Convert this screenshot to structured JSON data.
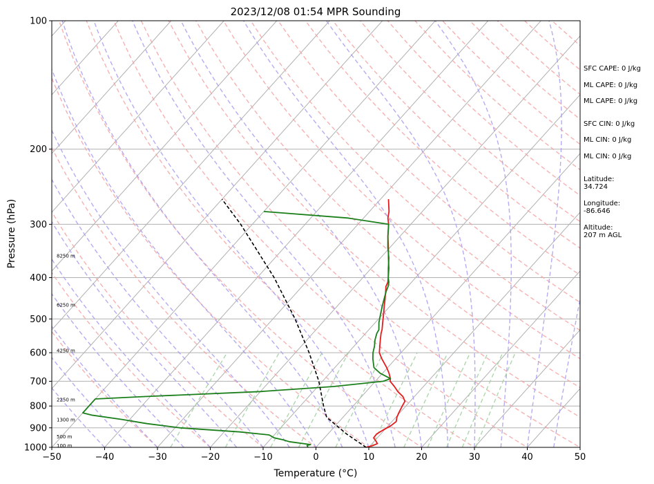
{
  "chart_data": {
    "type": "line",
    "diagram": "skew-t log-p",
    "title": "2023/12/08 01:54 MPR Sounding",
    "xlabel": "Temperature (°C)",
    "ylabel": "Pressure (hPa)",
    "xlim": [
      -50,
      50
    ],
    "ylim": [
      1000,
      100
    ],
    "y_scale": "log",
    "x_ticks": [
      "−50",
      "−40",
      "−30",
      "−20",
      "−10",
      "0",
      "10",
      "20",
      "30",
      "40",
      "50"
    ],
    "y_ticks": [
      "100",
      "200",
      "300",
      "400",
      "500",
      "600",
      "700",
      "800",
      "900",
      "1000"
    ],
    "grid": true,
    "series": [
      {
        "role": "temperature",
        "color": "#e41a1c",
        "points": [
          [
            1000,
            9.5
          ],
          [
            990,
            10.5
          ],
          [
            980,
            11
          ],
          [
            965,
            10.2
          ],
          [
            950,
            9.3
          ],
          [
            930,
            9.2
          ],
          [
            910,
            9.8
          ],
          [
            890,
            10.5
          ],
          [
            870,
            10.8
          ],
          [
            850,
            10.2
          ],
          [
            830,
            9.8
          ],
          [
            800,
            9.3
          ],
          [
            780,
            9
          ],
          [
            760,
            7.8
          ],
          [
            740,
            6
          ],
          [
            720,
            4.5
          ],
          [
            700,
            2.8
          ],
          [
            690,
            2.4
          ],
          [
            670,
            1.2
          ],
          [
            650,
            -0.2
          ],
          [
            620,
            -2.6
          ],
          [
            600,
            -4.1
          ],
          [
            580,
            -5.1
          ],
          [
            560,
            -6.1
          ],
          [
            540,
            -7.1
          ],
          [
            530,
            -7.5
          ],
          [
            510,
            -8.6
          ],
          [
            490,
            -9.7
          ],
          [
            470,
            -10.9
          ],
          [
            450,
            -12.1
          ],
          [
            430,
            -13.4
          ],
          [
            420,
            -14.1
          ],
          [
            410,
            -14.5
          ],
          [
            400,
            -15.2
          ],
          [
            380,
            -16.7
          ],
          [
            360,
            -18.5
          ],
          [
            340,
            -20.3
          ],
          [
            320,
            -22.3
          ],
          [
            300,
            -24.2
          ],
          [
            290,
            -25.4
          ],
          [
            280,
            -26.3
          ],
          [
            270,
            -27.5
          ],
          [
            262,
            -28.5
          ]
        ]
      },
      {
        "role": "dewpoint",
        "color": "#1a7f1a",
        "points": [
          [
            1000,
            -1.5
          ],
          [
            990,
            -2
          ],
          [
            985,
            -1.5
          ],
          [
            970,
            -6
          ],
          [
            960,
            -7.5
          ],
          [
            950,
            -9.5
          ],
          [
            935,
            -11
          ],
          [
            920,
            -17
          ],
          [
            900,
            -29
          ],
          [
            880,
            -36
          ],
          [
            860,
            -41.5
          ],
          [
            840,
            -48
          ],
          [
            830,
            -50
          ],
          [
            770,
            -50
          ],
          [
            760,
            -41
          ],
          [
            740,
            -20
          ],
          [
            720,
            -7
          ],
          [
            700,
            1.5
          ],
          [
            690,
            2.4
          ],
          [
            670,
            -0.5
          ],
          [
            650,
            -2.6
          ],
          [
            620,
            -4.3
          ],
          [
            600,
            -5.3
          ],
          [
            580,
            -6.1
          ],
          [
            560,
            -7.1
          ],
          [
            540,
            -7.9
          ],
          [
            530,
            -8.1
          ],
          [
            510,
            -9.3
          ],
          [
            490,
            -10.3
          ],
          [
            470,
            -11.3
          ],
          [
            450,
            -12.3
          ],
          [
            430,
            -13.3
          ],
          [
            420,
            -13.7
          ],
          [
            410,
            -14.3
          ],
          [
            400,
            -15.2
          ],
          [
            380,
            -16.8
          ],
          [
            360,
            -18.4
          ],
          [
            340,
            -20.4
          ],
          [
            320,
            -22.3
          ],
          [
            300,
            -24.2
          ],
          [
            290,
            -33
          ],
          [
            280,
            -50
          ]
        ]
      },
      {
        "role": "parcel",
        "color": "#000000",
        "style": "dashed",
        "points": [
          [
            1000,
            9.5
          ],
          [
            930,
            3.5
          ],
          [
            850,
            -3.1
          ],
          [
            800,
            -5.6
          ],
          [
            700,
            -10.7
          ],
          [
            600,
            -17.4
          ],
          [
            500,
            -25.8
          ],
          [
            400,
            -36.8
          ],
          [
            300,
            -52.2
          ],
          [
            262,
            -60
          ]
        ]
      }
    ],
    "height_labels": [
      {
        "text": "100 m",
        "pressure": 988
      },
      {
        "text": "500 m",
        "pressure": 942
      },
      {
        "text": "1300 m",
        "pressure": 859
      },
      {
        "text": "2250 m",
        "pressure": 772
      },
      {
        "text": "4250 m",
        "pressure": 592
      },
      {
        "text": "6250 m",
        "pressure": 463
      },
      {
        "text": "8250 m",
        "pressure": 355
      }
    ],
    "info_panel": [
      "SFC CAPE: 0 J/kg",
      "ML CAPE: 0 J/kg",
      "ML CAPE: 0 J/kg",
      "SFC CIN: 0 J/kg",
      "ML CIN: 0 J/kg",
      "ML CIN: 0 J/kg",
      "Latitude:",
      "34.724",
      "Longitude:",
      "-86.646",
      "Altitude:",
      "207 m AGL"
    ],
    "colors": {
      "isotherm": "#b0b0b0",
      "isobar": "#b0b0b0",
      "dry_adiabat": "#f4a3a3",
      "moist_adiabat": "#a89cf0",
      "mixing_ratio": "#9fd09f"
    }
  }
}
